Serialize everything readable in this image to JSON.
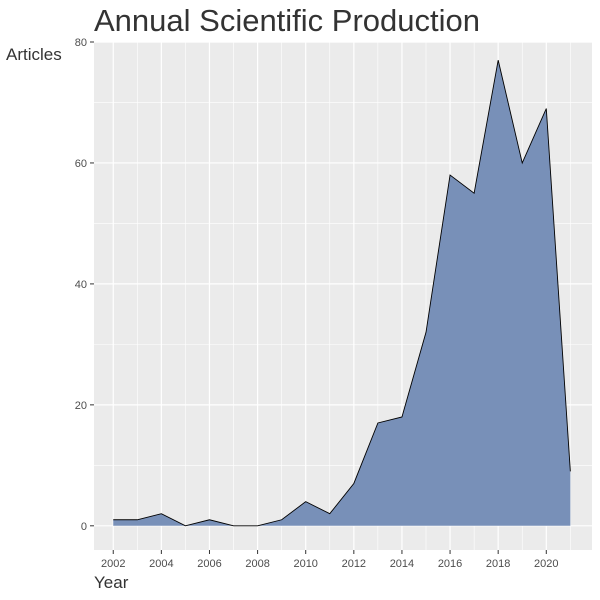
{
  "chart_data": {
    "type": "area",
    "title": "Annual Scientific Production",
    "xlabel": "Year",
    "ylabel": "Articles",
    "x": [
      2002,
      2003,
      2004,
      2005,
      2006,
      2007,
      2008,
      2009,
      2010,
      2011,
      2012,
      2013,
      2014,
      2015,
      2016,
      2017,
      2018,
      2019,
      2020,
      2021
    ],
    "values": [
      1,
      1,
      2,
      0,
      1,
      0,
      0,
      1,
      4,
      2,
      7,
      17,
      18,
      32,
      58,
      55,
      77,
      60,
      69,
      9
    ],
    "xlim": [
      2001.2,
      2021.9
    ],
    "ylim": [
      -4,
      80
    ],
    "x_ticks": [
      "2002",
      "2004",
      "2006",
      "2008",
      "2010",
      "2012",
      "2014",
      "2016",
      "2018",
      "2020"
    ],
    "y_ticks": [
      "0",
      "20",
      "40",
      "60",
      "80"
    ],
    "grid": true,
    "colors": {
      "fill": "#7890b8",
      "line": "#000000",
      "panel": "#ebebeb",
      "grid": "#ffffff"
    }
  }
}
